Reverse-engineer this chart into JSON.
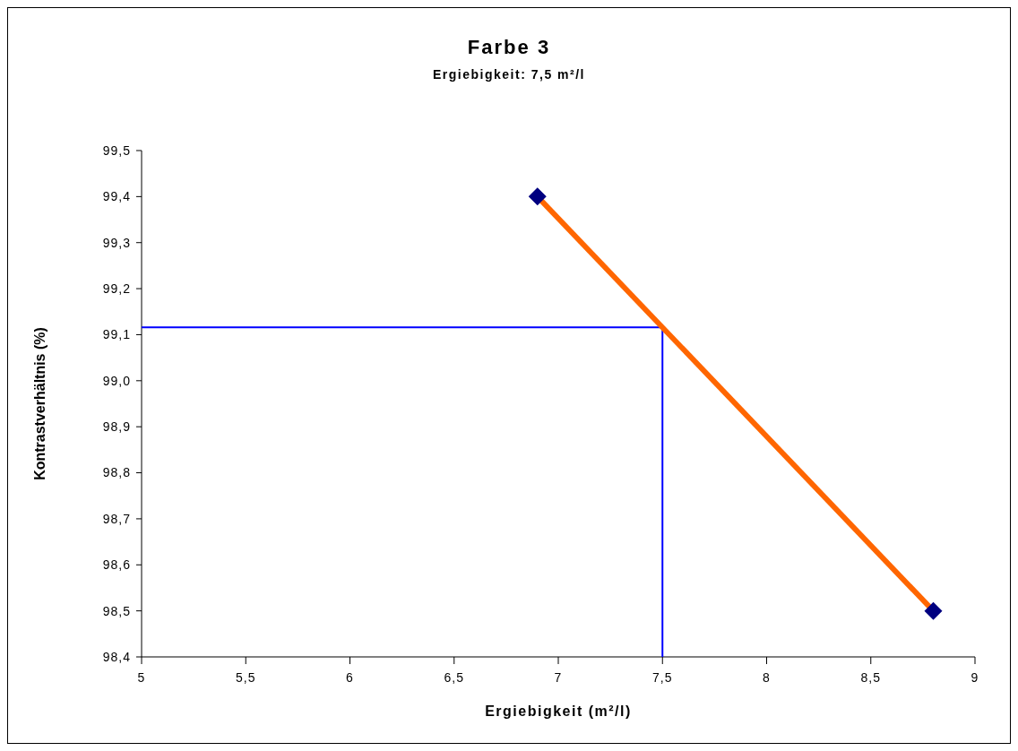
{
  "chart_data": {
    "type": "scatter",
    "title": "Farbe 3",
    "subtitle": "Ergiebigkeit: 7,5 m²/l",
    "xlabel": "Ergiebigkeit (m²/l)",
    "ylabel": "Kontrastverhältnis (%)",
    "xlim": [
      5,
      9
    ],
    "xticks": [
      5,
      {
        "value": 5.5,
        "label": "5,5"
      },
      6,
      {
        "value": 6.5,
        "label": "6,5"
      },
      7,
      {
        "value": 7.5,
        "label": "7,5"
      },
      8,
      {
        "value": 8.5,
        "label": "8,5"
      },
      9
    ],
    "ylim": [
      98.4,
      99.5
    ],
    "yticks": [
      {
        "value": 98.4,
        "label": "98,4"
      },
      {
        "value": 98.5,
        "label": "98,5"
      },
      {
        "value": 98.6,
        "label": "98,6"
      },
      {
        "value": 98.7,
        "label": "98,7"
      },
      {
        "value": 98.8,
        "label": "98,8"
      },
      {
        "value": 98.9,
        "label": "98,9"
      },
      {
        "value": 99.0,
        "label": "99,0"
      },
      {
        "value": 99.1,
        "label": "99,1"
      },
      {
        "value": 99.2,
        "label": "99,2"
      },
      {
        "value": 99.3,
        "label": "99,3"
      },
      {
        "value": 99.4,
        "label": "99,4"
      },
      {
        "value": 99.5,
        "label": "99,5"
      }
    ],
    "grid": false,
    "series": [
      {
        "type": "line",
        "color": "#0000ff",
        "x": [
          5,
          7.5,
          7.5
        ],
        "values": [
          99.116,
          99.116,
          98.4
        ],
        "marker": "none",
        "line_style": "solid"
      },
      {
        "type": "line",
        "color": "#ff6600",
        "x": [
          6.9,
          8.8
        ],
        "values": [
          99.4,
          98.5
        ],
        "marker": "none",
        "line_style": "solid"
      },
      {
        "color": "#000080",
        "x": [
          6.9,
          8.8
        ],
        "values": [
          99.4,
          98.5
        ],
        "marker": "diamond"
      }
    ]
  }
}
